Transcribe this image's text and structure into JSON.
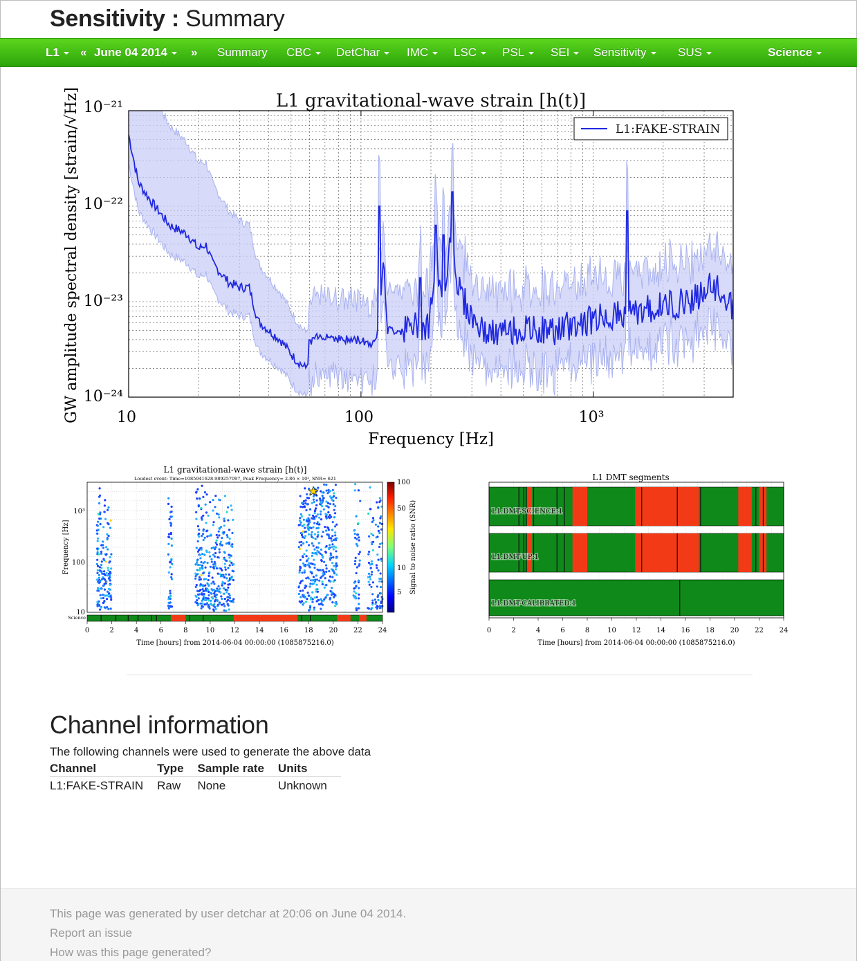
{
  "header": {
    "title_bold": "Sensitivity :",
    "title_regular": "Summary"
  },
  "navbar": {
    "ifo": "L1",
    "prev": "«",
    "date": "June 04 2014",
    "next": "»",
    "tabs": [
      "Summary",
      "CBC",
      "DetChar",
      "IMC",
      "LSC",
      "PSL",
      "SEI",
      "Sensitivity",
      "SUS"
    ],
    "state": "Science",
    "colors": {
      "top": "#5bd61d",
      "bottom": "#2ca40a",
      "text": "#ffffff"
    }
  },
  "figures": {
    "spectrum": {
      "title": "L1 gravitational-wave strain [h(t)]",
      "xlabel": "Frequency [Hz]",
      "ylabel": "GW amplitude spectral density [strain/√Hz]",
      "legend": "L1:FAKE-STRAIN",
      "xticks": [
        "10",
        "100",
        "10³"
      ],
      "yticks": [
        "10⁻²¹",
        "10⁻²²",
        "10⁻²³",
        "10⁻²⁴"
      ]
    },
    "omega": {
      "title": "L1 gravitational-wave strain [h(t)]",
      "subtitle": "Loudest event: Time=1085941628.989257097, Peak Frequency= 2.86 × 10³, SNR= 621",
      "ylabel": "Frequency [Hz]",
      "xlabel": "Time [hours] from 2014-06-04 00:00:00 (1085875216.0)",
      "colorbar_label": "Signal to noise ratio (SNR)",
      "colorbar_ticks": [
        "100",
        "50",
        "10",
        "5"
      ],
      "yticks": [
        "10³",
        "100",
        "10"
      ],
      "science_label": "Science",
      "xticks": [
        "0",
        "2",
        "4",
        "6",
        "8",
        "10",
        "12",
        "14",
        "16",
        "18",
        "20",
        "22",
        "24"
      ]
    },
    "segments": {
      "title": "L1 DMT segments",
      "xlabel": "Time [hours] from 2014-06-04 00:00:00 (1085875216.0)",
      "rows": [
        "L1:DMT-SCIENCE:1",
        "L1:DMT-UP:1",
        "L1:DMT-CALIBRATED:1"
      ],
      "xticks": [
        "0",
        "2",
        "4",
        "6",
        "8",
        "10",
        "12",
        "14",
        "16",
        "18",
        "20",
        "22",
        "24"
      ],
      "colors": {
        "active": "#0f8a1a",
        "inactive": "#f23a17"
      }
    }
  },
  "channel_info": {
    "title": "Channel information",
    "description": "The following channels were used to generate the above data",
    "columns": [
      "Channel",
      "Type",
      "Sample rate",
      "Units"
    ],
    "rows": [
      [
        "L1:FAKE-STRAIN",
        "Raw",
        "None",
        "Unknown"
      ]
    ]
  },
  "footer": {
    "generated": "This page was generated by user detchar at 20:06 on June 04 2014.",
    "report": "Report an issue",
    "how": "How was this page generated?"
  }
}
